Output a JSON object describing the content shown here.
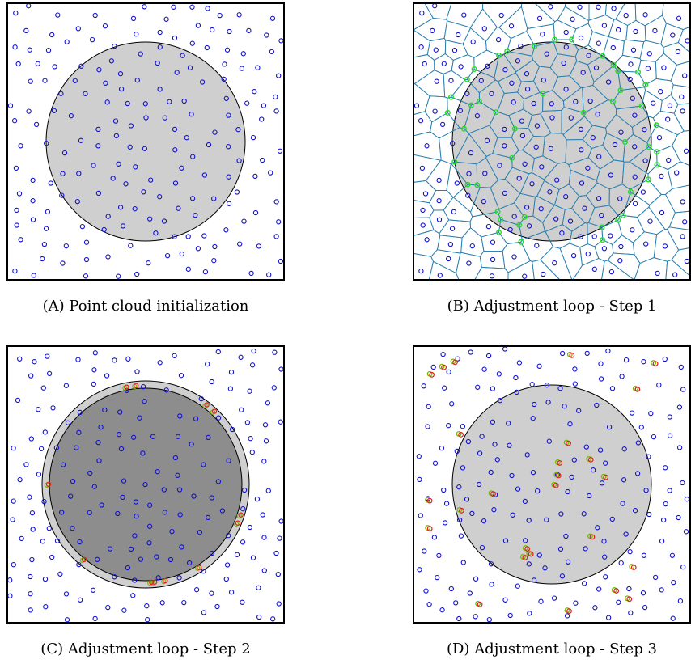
{
  "figure": {
    "panels": [
      {
        "id": "a",
        "label": "(A)",
        "caption": "Point cloud initialization"
      },
      {
        "id": "b",
        "label": "(B)",
        "caption": "Adjustment loop - Step 1"
      },
      {
        "id": "c",
        "label": "(C)",
        "caption": "Adjustment loop - Step 2"
      },
      {
        "id": "d",
        "label": "(D)",
        "caption": "Adjustment loop - Step 3"
      }
    ]
  },
  "colors": {
    "point": "#1010d0",
    "disk": "#cfcfcf",
    "disk_inner": "#8d8d8d",
    "voronoi_edge": "#2a7fb0",
    "voronoi_vertex": "#22dd22",
    "moved_new": "#e02020",
    "moved_old": "#7cb800"
  }
}
